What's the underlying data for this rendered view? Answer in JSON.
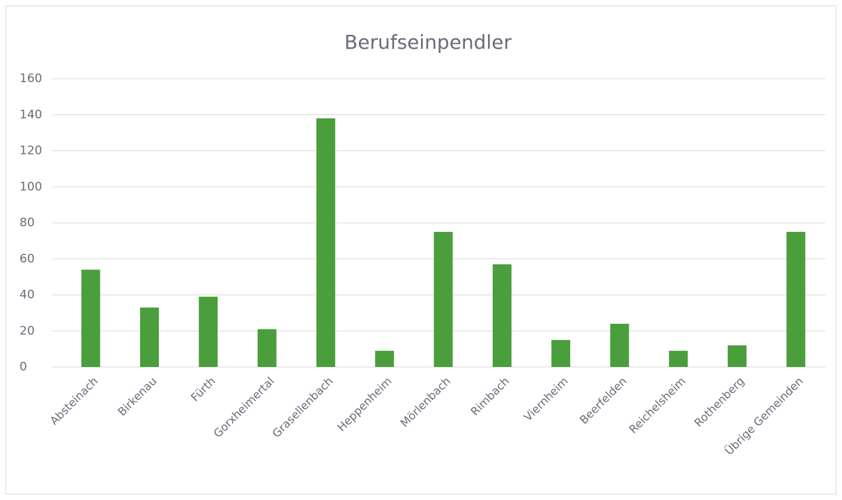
{
  "chart_data": {
    "type": "bar",
    "title": "Berufseinpendler",
    "categories": [
      "Absteinach",
      "Birkenau",
      "Fürth",
      "Gorxheimertal",
      "Grasellenbach",
      "Heppenheim",
      "Mörlenbach",
      "Rimbach",
      "Viernheim",
      "Beerfelden",
      "Reichelsheim",
      "Rothenberg",
      "Übrige Gemeinden"
    ],
    "values": [
      54,
      33,
      39,
      21,
      138,
      9,
      75,
      57,
      15,
      24,
      9,
      12,
      75
    ],
    "color": "#4a9e3c",
    "ylim": [
      0,
      160
    ],
    "yticks": [
      0,
      20,
      40,
      60,
      80,
      100,
      120,
      140,
      160
    ],
    "grid": true
  }
}
